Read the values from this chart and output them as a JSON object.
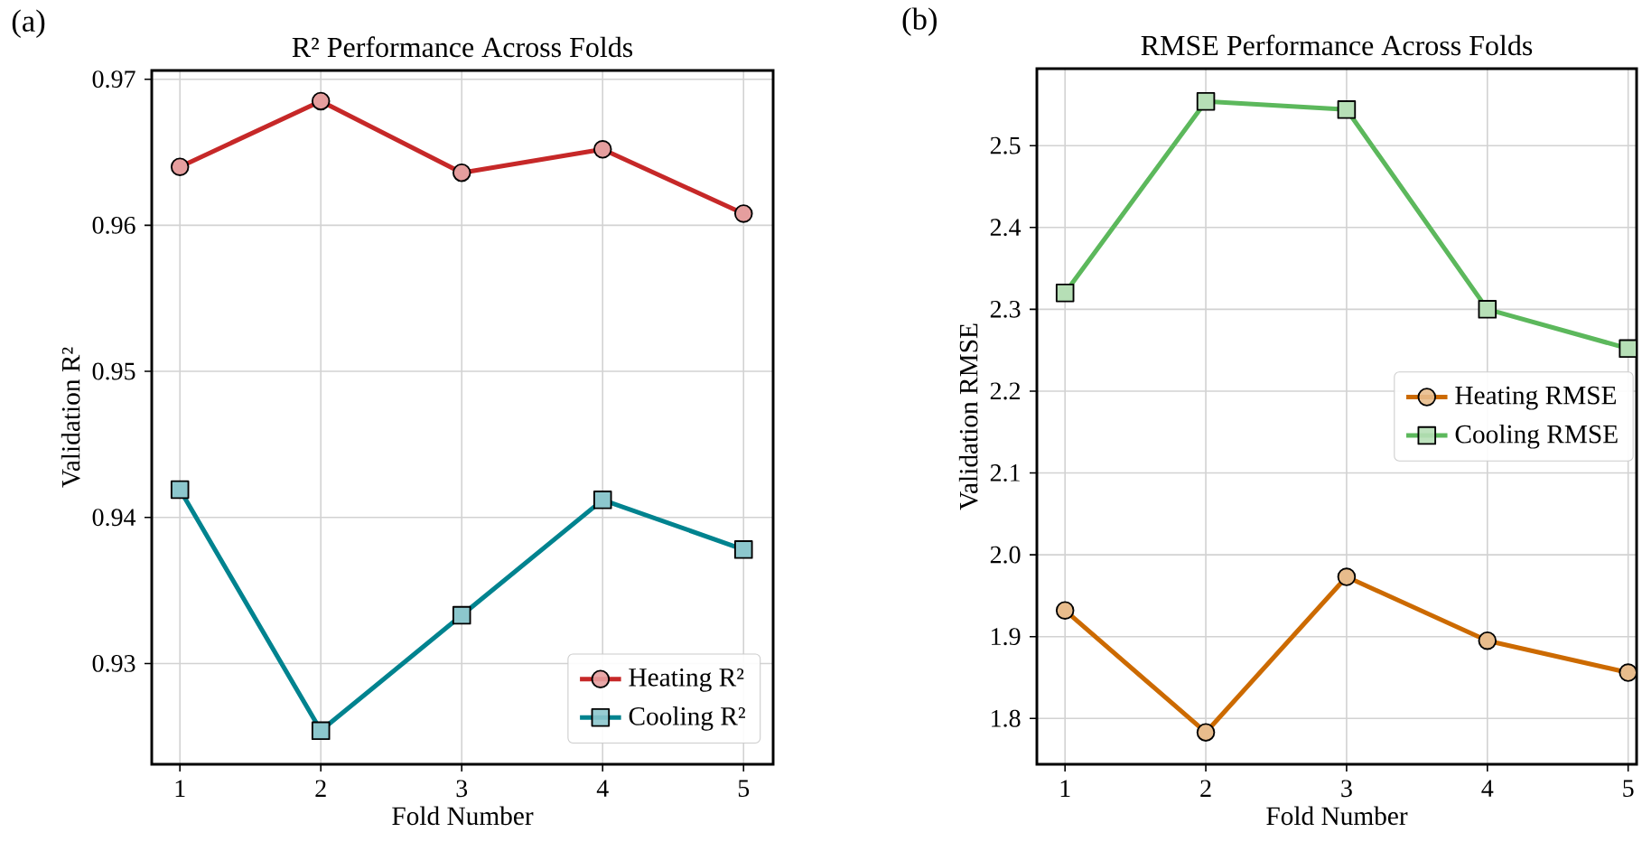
{
  "chart_data": [
    {
      "type": "line",
      "title": "R² Performance Across Folds",
      "xlabel": "Fold Number",
      "ylabel": "Validation R²",
      "annotations": [
        "(a)"
      ],
      "x": [
        1,
        2,
        3,
        4,
        5
      ],
      "series": [
        {
          "name": "Heating R²",
          "color": "#c62828",
          "marker": "circle",
          "values": [
            0.964,
            0.9685,
            0.9636,
            0.9652,
            0.9608
          ]
        },
        {
          "name": "Cooling R²",
          "color": "#00838f",
          "marker": "square",
          "values": [
            0.9419,
            0.9254,
            0.9333,
            0.9412,
            0.9378
          ]
        }
      ],
      "xlim": [
        0.8,
        5.21
      ],
      "ylim": [
        0.9231,
        0.9706
      ],
      "xticks": [
        1,
        2,
        3,
        4,
        5
      ],
      "yticks": [
        0.93,
        0.94,
        0.95,
        0.96,
        0.97
      ],
      "grid": true,
      "legend": "bottom right",
      "line_style": "solid"
    },
    {
      "type": "line",
      "title": "RMSE Performance Across Folds",
      "xlabel": "Fold Number",
      "ylabel": "Validation RMSE",
      "annotations": [
        "(b)"
      ],
      "x": [
        1,
        2,
        3,
        4,
        5
      ],
      "series": [
        {
          "name": "Heating RMSE",
          "color": "#cc6a00",
          "marker": "circle",
          "values": [
            1.932,
            1.783,
            1.973,
            1.895,
            1.856
          ]
        },
        {
          "name": "Cooling RMSE",
          "color": "#5cb85c",
          "marker": "square",
          "values": [
            2.32,
            2.554,
            2.544,
            2.3,
            2.252
          ]
        }
      ],
      "xlim": [
        0.8,
        5.06
      ],
      "ylim": [
        1.744,
        2.594
      ],
      "xticks": [
        1,
        2,
        3,
        4,
        5
      ],
      "yticks": [
        1.8,
        1.9,
        {
          "value": 2.0,
          "label": "2.0"
        },
        2.1,
        2.2,
        2.3,
        2.4,
        2.5
      ],
      "grid": true,
      "legend": "right",
      "line_style": "solid"
    }
  ]
}
